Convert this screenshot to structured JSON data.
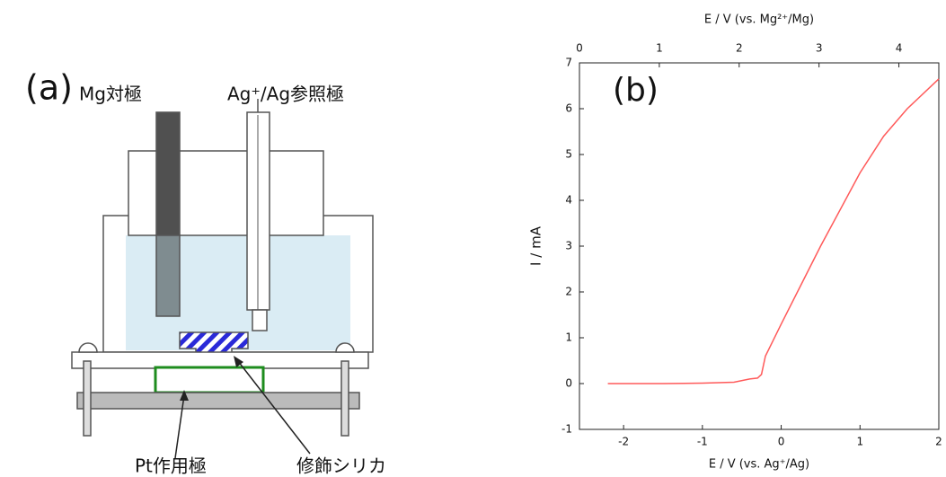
{
  "diagram": {
    "panel_label": "(a)",
    "counter_electrode": "Mg対極",
    "reference_electrode": "Ag⁺/Ag参照極",
    "working_electrode": "Pt作用極",
    "modified_silica": "修飾シリカ"
  },
  "chart_data": {
    "type": "line",
    "panel_label": "(b)",
    "xlabel": "E / V (vs. Ag⁺/Ag)",
    "x2label": "E / V (vs. Mg²⁺/Mg)",
    "ylabel": "I / mA",
    "x": [
      -2.2,
      -1.5,
      -1,
      -0.6,
      -0.4,
      -0.3,
      -0.25,
      -0.2,
      -0.1,
      0,
      0.5,
      1,
      1.3,
      1.6,
      2
    ],
    "series": [
      {
        "color": "#ff5a5a",
        "values": [
          0,
          0,
          0.01,
          0.03,
          0.1,
          0.12,
          0.2,
          0.6,
          0.95,
          1.3,
          3.0,
          4.6,
          5.4,
          6.0,
          6.65
        ]
      }
    ],
    "xlim": [
      -2.56,
      2
    ],
    "xticks": [
      -2,
      -1,
      0,
      1,
      2
    ],
    "x2lim": [
      0,
      4.5
    ],
    "x2ticks": [
      0,
      1,
      2,
      3,
      4
    ],
    "ylim": [
      -1,
      7
    ],
    "yticks": [
      -1,
      0,
      1,
      2,
      3,
      4,
      5,
      6,
      7
    ]
  }
}
